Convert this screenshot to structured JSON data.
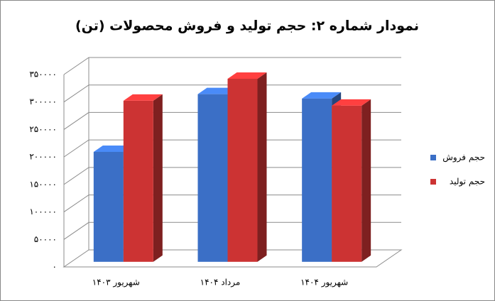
{
  "chart_data": {
    "type": "bar3d",
    "title": "نمودار شماره ۲: حجم تولید و فروش محصولات (تن)",
    "categories": [
      "شهریور ۱۴۰۳",
      "مرداد ۱۴۰۴",
      "شهریور ۱۴۰۴"
    ],
    "series": [
      {
        "name": "حجم فروش",
        "color": "#3b6fc6",
        "values": [
          200000,
          305000,
          297000
        ]
      },
      {
        "name": "حجم تولید",
        "color": "#cc3333",
        "values": [
          293000,
          333000,
          284000
        ]
      }
    ],
    "ylim": [
      0,
      350000
    ],
    "yticks": [
      {
        "value": 0,
        "label": "۰"
      },
      {
        "value": 50000,
        "label": "۵۰۰۰۰"
      },
      {
        "value": 100000,
        "label": "۱۰۰۰۰۰"
      },
      {
        "value": 150000,
        "label": "۱۵۰۰۰۰"
      },
      {
        "value": 200000,
        "label": "۲۰۰۰۰۰"
      },
      {
        "value": 250000,
        "label": "۲۵۰۰۰۰"
      },
      {
        "value": 300000,
        "label": "۳۰۰۰۰۰"
      },
      {
        "value": 350000,
        "label": "۳۵۰۰۰۰"
      }
    ],
    "grid": true,
    "legend": "right"
  }
}
